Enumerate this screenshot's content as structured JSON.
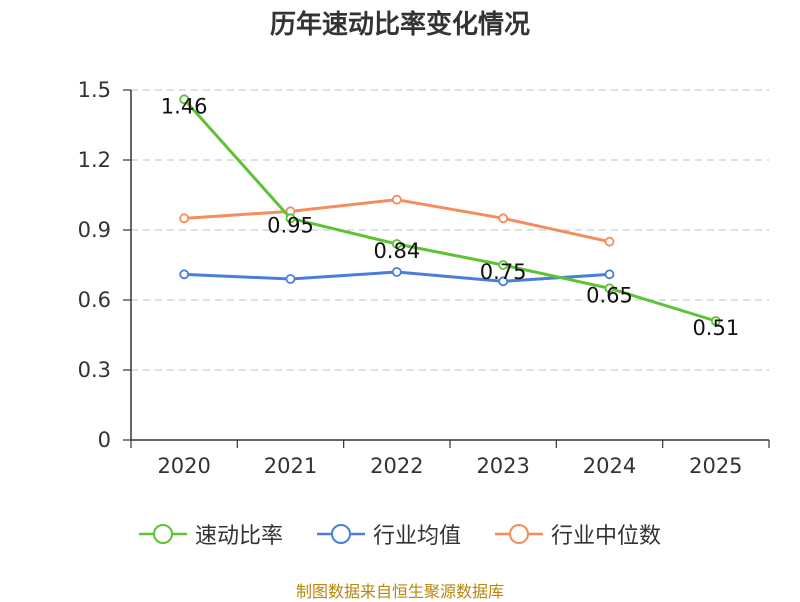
{
  "chart_data": {
    "type": "line",
    "title": "历年速动比率变化情况",
    "categories": [
      "2020",
      "2021",
      "2022",
      "2023",
      "2024",
      "2025"
    ],
    "ylim": [
      0,
      1.5
    ],
    "yticks": [
      "0",
      "0.3",
      "0.6",
      "0.9",
      "1.2",
      "1.5"
    ],
    "grid": true,
    "legend_position": "bottom",
    "series": [
      {
        "name": "速动比率",
        "color": "#5dc234",
        "values": [
          1.46,
          0.95,
          0.84,
          0.75,
          0.65,
          0.51
        ],
        "labels": [
          "1.46",
          "0.95",
          "0.84",
          "0.75",
          "0.65",
          "0.51"
        ]
      },
      {
        "name": "行业均值",
        "color": "#4a7fd8",
        "values": [
          0.71,
          0.69,
          0.72,
          0.68,
          0.71,
          null
        ]
      },
      {
        "name": "行业中位数",
        "color": "#f58d5b",
        "values": [
          0.95,
          0.98,
          1.03,
          0.95,
          0.85,
          null
        ]
      }
    ]
  },
  "source_note": "制图数据来自恒生聚源数据库"
}
